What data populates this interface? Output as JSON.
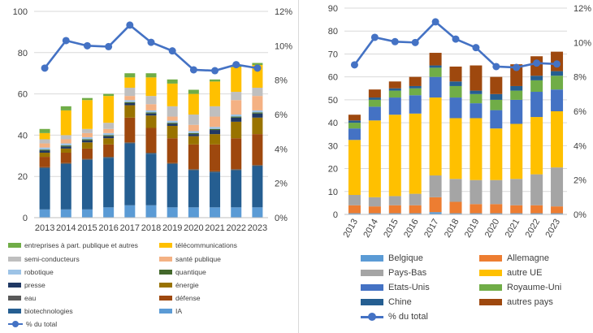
{
  "chart_data": [
    {
      "type": "bar",
      "stacked": true,
      "categories": [
        "2013",
        "2014",
        "2015",
        "2016",
        "2017",
        "2018",
        "2019",
        "2020",
        "2021",
        "2022",
        "2023"
      ],
      "ylim": [
        0,
        100
      ],
      "yticks": [
        0,
        20,
        40,
        60,
        80,
        100
      ],
      "y2lim": [
        0,
        12
      ],
      "y2ticks": [
        "0%",
        "2%",
        "4%",
        "6%",
        "8%",
        "10%",
        "12%"
      ],
      "series": [
        {
          "name": "IA",
          "color": "#5b9bd5",
          "values": [
            4,
            4,
            4,
            5,
            6,
            6,
            5,
            5,
            5,
            5,
            5
          ]
        },
        {
          "name": "biotechnologies",
          "color": "#255e91",
          "values": [
            20,
            22,
            24,
            24,
            30,
            25,
            21,
            18,
            17,
            18,
            20
          ]
        },
        {
          "name": "eau",
          "color": "#595959",
          "values": [
            0.5,
            0.5,
            0.5,
            0.5,
            0.5,
            0.5,
            0.5,
            0.5,
            0.5,
            0.5,
            0.5
          ]
        },
        {
          "name": "défense",
          "color": "#9e480e",
          "values": [
            5,
            5,
            5,
            6,
            12,
            12,
            12,
            12,
            13,
            15,
            15
          ]
        },
        {
          "name": "énergie",
          "color": "#997300",
          "values": [
            2,
            2,
            3,
            3,
            6,
            6,
            6,
            4,
            5,
            8,
            8
          ]
        },
        {
          "name": "presse",
          "color": "#203864",
          "values": [
            1,
            1,
            1,
            1,
            1,
            1,
            1,
            1,
            2,
            2,
            2
          ]
        },
        {
          "name": "quantique",
          "color": "#43682b",
          "values": [
            0.5,
            0.5,
            0.5,
            0.5,
            0.5,
            0.5,
            0.5,
            0.5,
            0.5,
            0.5,
            0.5
          ]
        },
        {
          "name": "robotique",
          "color": "#9dc3e6",
          "values": [
            1,
            1,
            1,
            1,
            1,
            1,
            1,
            1,
            1,
            1,
            1
          ]
        },
        {
          "name": "santé publique",
          "color": "#f4b183",
          "values": [
            2,
            2,
            2,
            2,
            2,
            3,
            2,
            3,
            5,
            7,
            7
          ]
        },
        {
          "name": "semi-conducteurs",
          "color": "#bfbfbf",
          "values": [
            2,
            2,
            2,
            3,
            4,
            4,
            5,
            5,
            5,
            4,
            4
          ]
        },
        {
          "name": "télécommunications",
          "color": "#ffc000",
          "values": [
            3,
            12,
            14,
            13,
            5,
            9,
            11,
            10,
            12,
            12,
            11
          ]
        },
        {
          "name": "entreprises à part. publique et autres",
          "color": "#70ad47",
          "values": [
            2,
            2,
            1,
            1,
            2,
            2,
            2,
            2,
            1,
            1,
            1
          ]
        }
      ],
      "line": {
        "name": "% du total",
        "color": "#4472c4",
        "values": [
          8.7,
          10.3,
          10.0,
          9.95,
          11.2,
          10.2,
          9.7,
          8.6,
          8.55,
          8.9,
          8.7
        ]
      }
    },
    {
      "type": "bar",
      "stacked": true,
      "categories": [
        "2013",
        "2014",
        "2015",
        "2016",
        "2017",
        "2018",
        "2019",
        "2020",
        "2021",
        "2022",
        "2023"
      ],
      "ylim": [
        0,
        90
      ],
      "yticks": [
        0,
        10,
        20,
        30,
        40,
        50,
        60,
        70,
        80,
        90
      ],
      "y2lim": [
        0,
        12
      ],
      "y2ticks": [
        "0%",
        "2%",
        "4%",
        "6%",
        "8%",
        "10%",
        "12%"
      ],
      "series": [
        {
          "name": "Belgique",
          "color": "#5b9bd5",
          "values": [
            0.5,
            0.5,
            0.5,
            0.5,
            1,
            0.5,
            0.5,
            0.5,
            0.5,
            0.5,
            0.5
          ]
        },
        {
          "name": "Allemagne",
          "color": "#ed7d31",
          "values": [
            3.5,
            3,
            3.5,
            3.5,
            6.5,
            5,
            4,
            4,
            3.5,
            3.5,
            3
          ]
        },
        {
          "name": "Pays-Bas",
          "color": "#a5a5a5",
          "values": [
            4.5,
            4,
            4,
            5,
            9.5,
            10,
            10.5,
            10.5,
            11.5,
            13.5,
            17
          ]
        },
        {
          "name": "autre UE",
          "color": "#ffc000",
          "values": [
            24,
            33.5,
            35.5,
            35,
            34,
            26.5,
            27,
            22.5,
            24,
            25,
            24.5
          ]
        },
        {
          "name": "Etats-Unis",
          "color": "#4472c4",
          "values": [
            5,
            6,
            7.5,
            8,
            9,
            9,
            6.5,
            8,
            10.5,
            11,
            9.5
          ]
        },
        {
          "name": "Royaume-Uni",
          "color": "#70ad47",
          "values": [
            2.5,
            3,
            3,
            3,
            4,
            5,
            4,
            4.5,
            4,
            5,
            6
          ]
        },
        {
          "name": "Chine",
          "color": "#255e91",
          "values": [
            1,
            1,
            1,
            1,
            1,
            2,
            1.5,
            2.5,
            2,
            2,
            2
          ]
        },
        {
          "name": "autres pays",
          "color": "#9e480e",
          "values": [
            2.5,
            3.5,
            3,
            4,
            5.5,
            6.5,
            11,
            7.5,
            9.5,
            8.5,
            8.5
          ]
        }
      ],
      "line": {
        "name": "% du total",
        "color": "#4472c4",
        "values": [
          8.7,
          10.3,
          10.05,
          10.0,
          11.2,
          10.2,
          9.7,
          8.6,
          8.55,
          8.8,
          8.75
        ]
      }
    }
  ]
}
